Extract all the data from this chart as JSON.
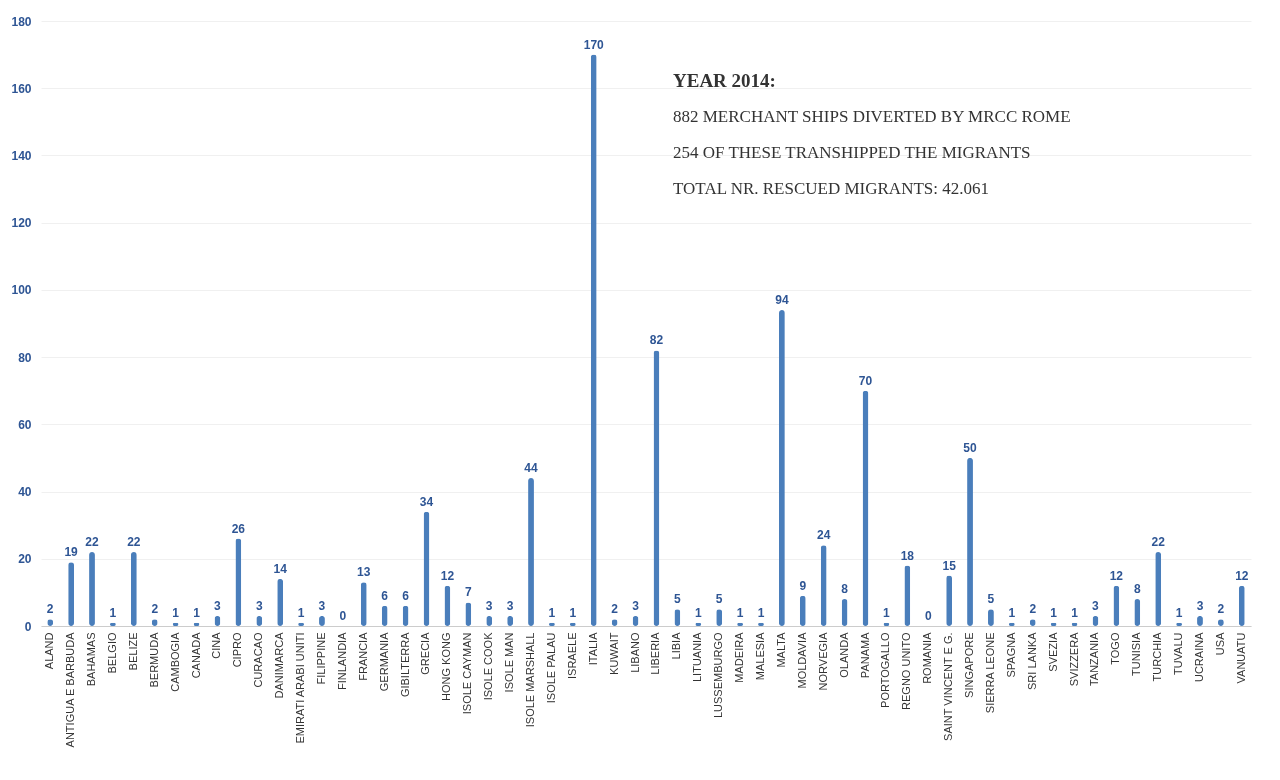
{
  "chart_data": {
    "type": "bar",
    "categories": [
      "ALAND",
      "ANTIGUA E BARBUDA",
      "BAHAMAS",
      "BELGIO",
      "BELIZE",
      "BERMUDA",
      "CAMBOGIA",
      "CANADA",
      "CINA",
      "CIPRO",
      "CURACAO",
      "DANIMARCA",
      "EMIRATI ARABI UNITI",
      "FILIPPINE",
      "FINLANDIA",
      "FRANCIA",
      "GERMANIA",
      "GIBILTERRA",
      "GRECIA",
      "HONG KONG",
      "ISOLE CAYMAN",
      "ISOLE COOK",
      "ISOLE MAN",
      "ISOLE MARSHALL",
      "ISOLE PALAU",
      "ISRAELE",
      "ITALIA",
      "KUWAIT",
      "LIBANO",
      "LIBERIA",
      "LIBIA",
      "LITUANIA",
      "LUSSEMBURGO",
      "MADEIRA",
      "MALESIA",
      "MALTA",
      "MOLDAVIA",
      "NORVEGIA",
      "OLANDA",
      "PANAMA",
      "PORTOGALLO",
      "REGNO UNITO",
      "ROMANIA",
      "SAINT VINCENT E G.",
      "SINGAPORE",
      "SIERRA LEONE",
      "SPAGNA",
      "SRI LANKA",
      "SVEZIA",
      "SVIZZERA",
      "TANZANIA",
      "TOGO",
      "TUNISIA",
      "TURCHIA",
      "TUVALU",
      "UCRAINA",
      "USA",
      "VANUATU"
    ],
    "values": [
      2,
      19,
      22,
      1,
      22,
      2,
      1,
      1,
      3,
      26,
      3,
      14,
      1,
      3,
      0,
      13,
      6,
      6,
      34,
      12,
      7,
      3,
      3,
      44,
      1,
      1,
      170,
      2,
      3,
      82,
      5,
      1,
      5,
      1,
      1,
      94,
      9,
      24,
      8,
      70,
      1,
      18,
      0,
      15,
      50,
      5,
      1,
      2,
      1,
      1,
      3,
      12,
      8,
      22,
      1,
      3,
      2,
      12
    ],
    "color": "#4a7ebb",
    "ylim": [
      0,
      180
    ],
    "yticks": [
      0,
      20,
      40,
      60,
      80,
      100,
      120,
      140,
      160,
      180
    ],
    "grid": true,
    "data_labels": true,
    "annotations": [
      "YEAR 2014:",
      "882 MERCHANT SHIPS DIVERTED BY MRCC ROME",
      "254  OF THESE TRANSHIPPED THE MIGRANTS",
      "TOTAL NR. RESCUED MIGRANTS: 42.061"
    ]
  }
}
